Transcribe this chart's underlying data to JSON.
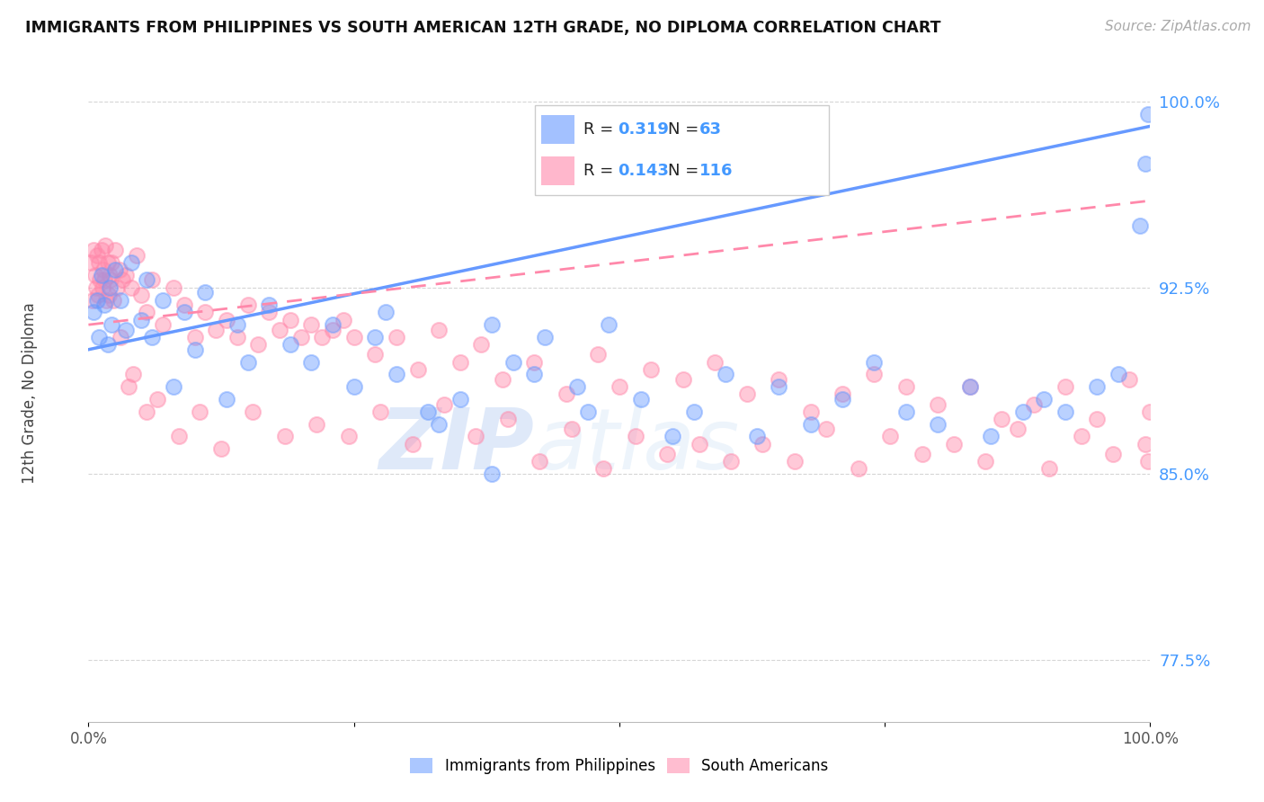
{
  "title": "IMMIGRANTS FROM PHILIPPINES VS SOUTH AMERICAN 12TH GRADE, NO DIPLOMA CORRELATION CHART",
  "source": "Source: ZipAtlas.com",
  "ylabel": "12th Grade, No Diploma",
  "xlim": [
    0.0,
    100.0
  ],
  "ylim": [
    75.0,
    101.5
  ],
  "yticks": [
    77.5,
    85.0,
    92.5,
    100.0
  ],
  "ytick_labels": [
    "77.5%",
    "85.0%",
    "92.5%",
    "100.0%"
  ],
  "xticks": [
    0.0,
    25.0,
    50.0,
    75.0,
    100.0
  ],
  "xtick_labels": [
    "0.0%",
    "",
    "",
    "",
    "100.0%"
  ],
  "legend_R1": "0.319",
  "legend_N1": "63",
  "legend_R2": "0.143",
  "legend_N2": "116",
  "color_philippines": "#6699ff",
  "color_south_american": "#ff88aa",
  "watermark_zip": "ZIP",
  "watermark_atlas": "atlas",
  "phil_x": [
    0.5,
    0.8,
    1.0,
    1.2,
    1.5,
    1.8,
    2.0,
    2.2,
    2.5,
    3.0,
    3.5,
    4.0,
    5.0,
    5.5,
    6.0,
    7.0,
    8.0,
    9.0,
    10.0,
    11.0,
    13.0,
    14.0,
    15.0,
    17.0,
    19.0,
    21.0,
    23.0,
    25.0,
    27.0,
    29.0,
    32.0,
    35.0,
    38.0,
    40.0,
    43.0,
    46.0,
    49.0,
    52.0,
    55.0,
    57.0,
    60.0,
    63.0,
    65.0,
    68.0,
    71.0,
    74.0,
    77.0,
    80.0,
    83.0,
    85.0,
    88.0,
    90.0,
    92.0,
    95.0,
    97.0,
    99.0,
    99.5,
    99.8,
    28.0,
    33.0,
    38.0,
    42.0,
    47.0
  ],
  "phil_y": [
    91.5,
    92.0,
    90.5,
    93.0,
    91.8,
    90.2,
    92.5,
    91.0,
    93.2,
    92.0,
    90.8,
    93.5,
    91.2,
    92.8,
    90.5,
    92.0,
    88.5,
    91.5,
    90.0,
    92.3,
    88.0,
    91.0,
    89.5,
    91.8,
    90.2,
    89.5,
    91.0,
    88.5,
    90.5,
    89.0,
    87.5,
    88.0,
    91.0,
    89.5,
    90.5,
    88.5,
    91.0,
    88.0,
    86.5,
    87.5,
    89.0,
    86.5,
    88.5,
    87.0,
    88.0,
    89.5,
    87.5,
    87.0,
    88.5,
    86.5,
    87.5,
    88.0,
    87.5,
    88.5,
    89.0,
    95.0,
    97.5,
    99.5,
    91.5,
    87.0,
    85.0,
    89.0,
    87.5
  ],
  "sa_x": [
    0.2,
    0.4,
    0.5,
    0.6,
    0.7,
    0.8,
    0.9,
    1.0,
    1.1,
    1.2,
    1.3,
    1.4,
    1.5,
    1.6,
    1.7,
    1.8,
    1.9,
    2.0,
    2.1,
    2.2,
    2.3,
    2.5,
    2.7,
    2.9,
    3.2,
    3.5,
    4.0,
    4.5,
    5.0,
    5.5,
    6.0,
    7.0,
    8.0,
    9.0,
    10.0,
    11.0,
    12.0,
    13.0,
    14.0,
    15.0,
    16.0,
    17.0,
    18.0,
    19.0,
    20.0,
    21.0,
    22.0,
    23.0,
    24.0,
    25.0,
    27.0,
    29.0,
    31.0,
    33.0,
    35.0,
    37.0,
    39.0,
    42.0,
    45.0,
    48.0,
    50.0,
    53.0,
    56.0,
    59.0,
    62.0,
    65.0,
    68.0,
    71.0,
    74.0,
    77.0,
    80.0,
    83.0,
    86.0,
    89.0,
    92.0,
    95.0,
    98.0,
    100.0,
    3.0,
    3.8,
    4.2,
    5.5,
    6.5,
    8.5,
    10.5,
    12.5,
    15.5,
    18.5,
    21.5,
    24.5,
    27.5,
    30.5,
    33.5,
    36.5,
    39.5,
    42.5,
    45.5,
    48.5,
    51.5,
    54.5,
    57.5,
    60.5,
    63.5,
    66.5,
    69.5,
    72.5,
    75.5,
    78.5,
    81.5,
    84.5,
    87.5,
    90.5,
    93.5,
    96.5,
    99.5,
    99.8
  ],
  "sa_y": [
    93.5,
    92.0,
    94.0,
    93.0,
    92.5,
    93.8,
    92.2,
    93.5,
    92.8,
    94.0,
    92.5,
    93.2,
    92.8,
    94.2,
    92.0,
    93.5,
    92.2,
    93.0,
    92.8,
    93.5,
    92.0,
    94.0,
    92.5,
    93.2,
    92.8,
    93.0,
    92.5,
    93.8,
    92.2,
    91.5,
    92.8,
    91.0,
    92.5,
    91.8,
    90.5,
    91.5,
    90.8,
    91.2,
    90.5,
    91.8,
    90.2,
    91.5,
    90.8,
    91.2,
    90.5,
    91.0,
    90.5,
    90.8,
    91.2,
    90.5,
    89.8,
    90.5,
    89.2,
    90.8,
    89.5,
    90.2,
    88.8,
    89.5,
    88.2,
    89.8,
    88.5,
    89.2,
    88.8,
    89.5,
    88.2,
    88.8,
    87.5,
    88.2,
    89.0,
    88.5,
    87.8,
    88.5,
    87.2,
    87.8,
    88.5,
    87.2,
    88.8,
    87.5,
    90.5,
    88.5,
    89.0,
    87.5,
    88.0,
    86.5,
    87.5,
    86.0,
    87.5,
    86.5,
    87.0,
    86.5,
    87.5,
    86.2,
    87.8,
    86.5,
    87.2,
    85.5,
    86.8,
    85.2,
    86.5,
    85.8,
    86.2,
    85.5,
    86.2,
    85.5,
    86.8,
    85.2,
    86.5,
    85.8,
    86.2,
    85.5,
    86.8,
    85.2,
    86.5,
    85.8,
    86.2,
    85.5
  ]
}
